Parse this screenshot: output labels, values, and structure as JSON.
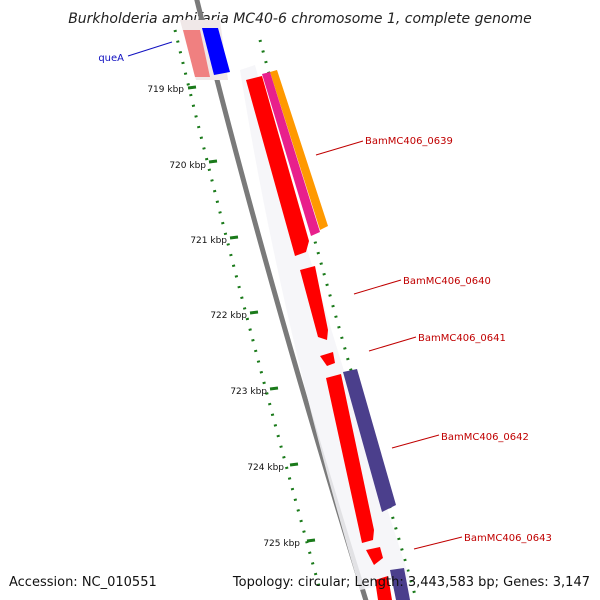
{
  "title": "Burkholderia ambifaria MC40-6 chromosome 1, complete genome",
  "footer": {
    "accession": "Accession: NC_010551",
    "summary": "Topology: circular; Length: 3,443,583 bp; Genes: 3,147"
  },
  "ticks": [
    "719 kbp",
    "720 kbp",
    "721 kbp",
    "722 kbp",
    "723 kbp",
    "724 kbp",
    "725 kbp"
  ],
  "genes": [
    {
      "label": "queA",
      "color": "#1010c0"
    },
    {
      "label": "BamMC406_0639",
      "color": "#c00000"
    },
    {
      "label": "BamMC406_0640",
      "color": "#c00000"
    },
    {
      "label": "BamMC406_0641",
      "color": "#c00000"
    },
    {
      "label": "BamMC406_0642",
      "color": "#c00000"
    },
    {
      "label": "BamMC406_0643",
      "color": "#c00000"
    }
  ],
  "colors": {
    "gene_red": "#ff0000",
    "gene_blue": "#0000ff",
    "gene_pink": "#f08080",
    "gene_magenta": "#e8208c",
    "gene_orange": "#ff9900",
    "gene_purple": "#4b3f8c",
    "backbone": "#7a7a7a",
    "tick_green": "#1a7a1a"
  }
}
